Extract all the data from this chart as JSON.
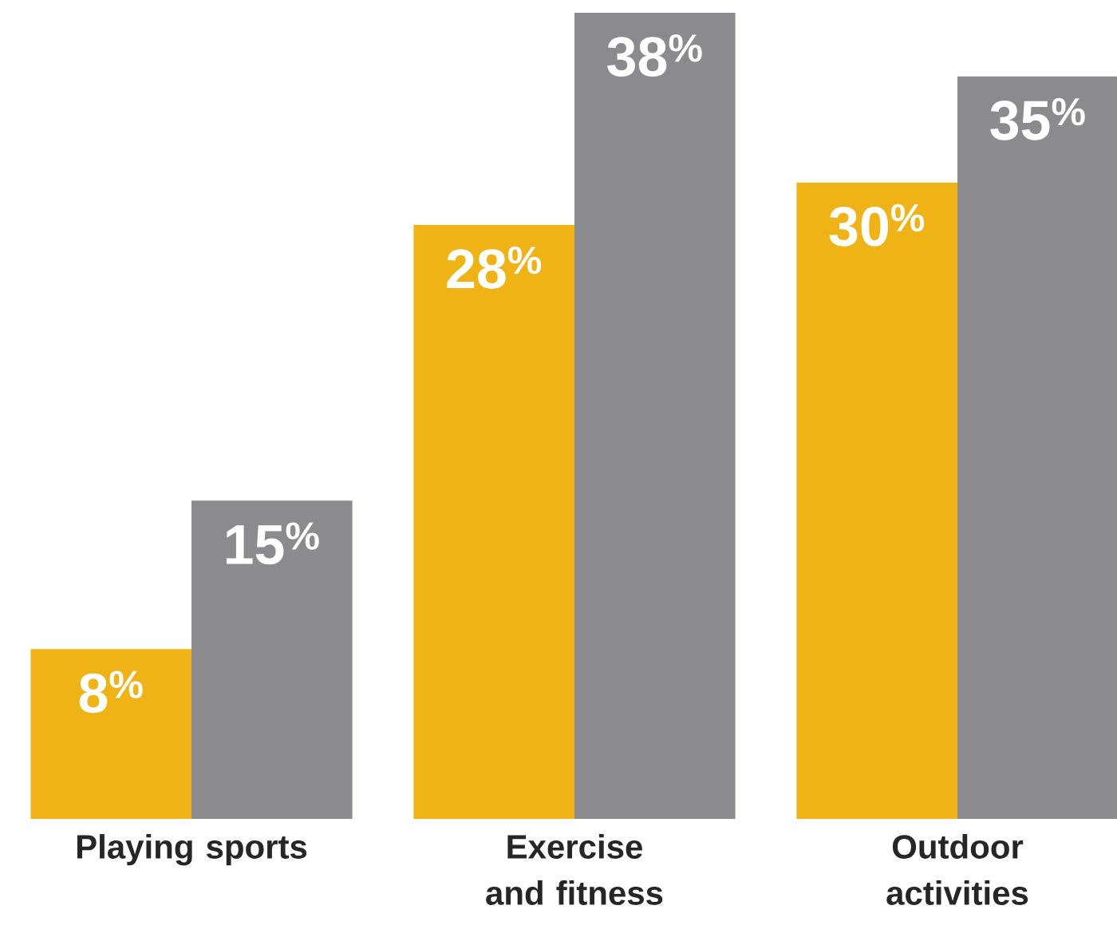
{
  "chart_data": {
    "type": "bar",
    "categories": [
      "Playing sports",
      "Exercise and fitness",
      "Outdoor activities"
    ],
    "series": [
      {
        "color": "#f0b316",
        "values": [
          8,
          28,
          30
        ],
        "value_labels": [
          "8$^{%}$",
          "28$^{%}$",
          "30$^{%}$"
        ]
      },
      {
        "color": "#898b8e",
        "values": [
          15,
          38,
          35
        ],
        "value_labels": [
          "15$^{%}$",
          "38$^{%}$",
          "35$^{%}$"
        ]
      }
    ]
  }
}
